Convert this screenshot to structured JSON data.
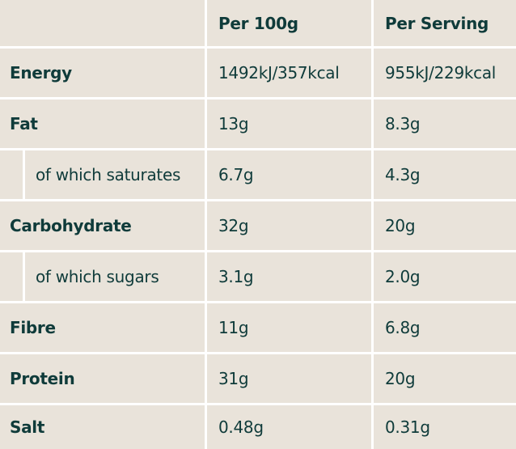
{
  "table": {
    "header": [
      "Per 100g",
      "Per Serving"
    ],
    "rows": [
      {
        "label": "Energy",
        "per_100g": "1492kJ/357kcal",
        "per_serving": "955kJ/229kcal",
        "sub": false
      },
      {
        "label": "Fat",
        "per_100g": "13g",
        "per_serving": "8.3g",
        "sub": false
      },
      {
        "label": "of which saturates",
        "per_100g": "6.7g",
        "per_serving": "4.3g",
        "sub": true
      },
      {
        "label": "Carbohydrate",
        "per_100g": "32g",
        "per_serving": "20g",
        "sub": false
      },
      {
        "label": "of which sugars",
        "per_100g": "3.1g",
        "per_serving": "2.0g",
        "sub": true
      },
      {
        "label": "Fibre",
        "per_100g": "11g",
        "per_serving": "6.8g",
        "sub": false
      },
      {
        "label": "Protein",
        "per_100g": "31g",
        "per_serving": "20g",
        "sub": false
      },
      {
        "label": "Salt",
        "per_100g": "0.48g",
        "per_serving": "0.31g",
        "sub": false
      }
    ]
  }
}
